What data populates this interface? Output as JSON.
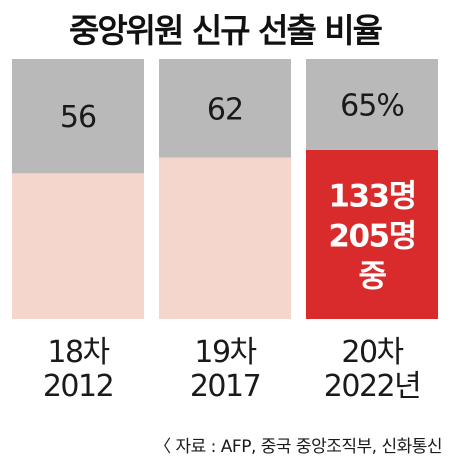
{
  "title": "중앙위원 신규 선출 비율",
  "source": "〈 자료 : AFP, 중국 중앙조직부, 신화통신",
  "colors": {
    "bar_top": "#b9b9b9",
    "bar_bottom": "#f4d6cc",
    "highlight": "#d92b2b",
    "text": "#1a1a1a",
    "highlight_text": "#ffffff"
  },
  "chart_data": {
    "type": "bar",
    "stacked": true,
    "ylim": [
      0,
      100
    ],
    "categories": [
      [
        "18차",
        "2012"
      ],
      [
        "19차",
        "2017"
      ],
      [
        "20차",
        "2022년"
      ]
    ],
    "values": [
      56,
      62,
      65
    ],
    "value_labels": [
      "56",
      "62",
      "65%"
    ],
    "highlight_index": 2,
    "highlight_text": [
      "133명",
      "205명",
      "중"
    ]
  }
}
